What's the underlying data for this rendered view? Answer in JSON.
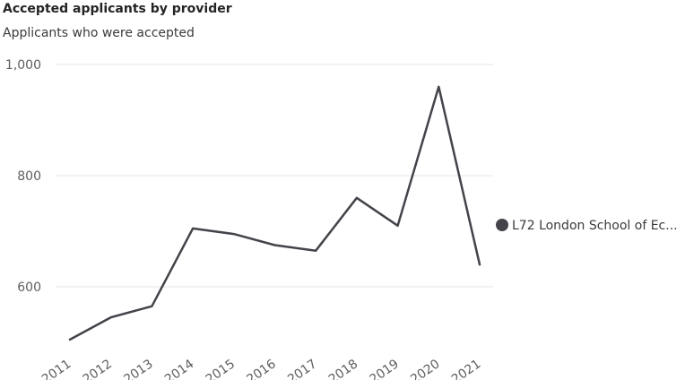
{
  "chart_data": {
    "type": "line",
    "title": "Accepted applicants by provider",
    "subtitle": "Applicants who were accepted",
    "xlabel": "",
    "ylabel": "",
    "x": [
      "2011",
      "2012",
      "2013",
      "2014",
      "2015",
      "2016",
      "2017",
      "2018",
      "2019",
      "2020",
      "2021"
    ],
    "series": [
      {
        "name": "L72 London School of Ec...",
        "values": [
          505,
          545,
          565,
          705,
          695,
          675,
          665,
          760,
          710,
          960,
          640
        ],
        "color": "#44434a"
      }
    ],
    "ylim": [
      480,
      1000
    ],
    "yticks": [
      {
        "value": 600,
        "label": "600"
      },
      {
        "value": 800,
        "label": "800"
      },
      {
        "value": 1000,
        "label": "1,000"
      }
    ],
    "grid": true,
    "legend": "right"
  }
}
